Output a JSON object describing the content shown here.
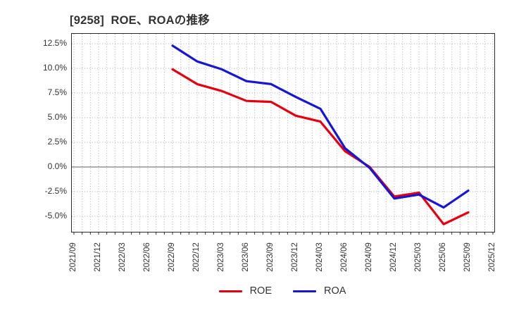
{
  "title": "[9258]  ROE、ROAの推移",
  "chart_data": {
    "type": "line",
    "title": "[9258]  ROE、ROAの推移",
    "x_categories": [
      "2021/09",
      "2021/12",
      "2022/03",
      "2022/06",
      "2022/09",
      "2022/12",
      "2023/03",
      "2023/06",
      "2023/09",
      "2023/12",
      "2024/03",
      "2024/06",
      "2024/09",
      "2024/12",
      "2025/03",
      "2025/06",
      "2025/09",
      "2025/12"
    ],
    "series": [
      {
        "name": "ROE",
        "color": "#e8000d",
        "start_index": 4,
        "values": [
          9.9,
          8.4,
          7.7,
          6.7,
          6.6,
          5.2,
          4.6,
          1.6,
          0.0,
          -3.0,
          -2.6,
          -5.8,
          -4.6
        ]
      },
      {
        "name": "ROA",
        "color": "#1616d9",
        "start_index": 4,
        "values": [
          12.3,
          10.7,
          9.9,
          8.7,
          8.4,
          7.1,
          5.9,
          1.9,
          -0.1,
          -3.2,
          -2.8,
          -4.1,
          -2.4
        ]
      }
    ],
    "y_ticks": [
      12.5,
      10.0,
      7.5,
      5.0,
      2.5,
      0.0,
      -2.5,
      -5.0
    ],
    "y_tick_labels": [
      "12.5%",
      "10.0%",
      "7.5%",
      "5.0%",
      "2.5%",
      "0.0%",
      "-2.5%",
      "-5.0%"
    ],
    "ylim": [
      -6.6,
      13.5
    ],
    "xlabel": "",
    "ylabel": "",
    "grid": true,
    "minor_x_grid": "monthly",
    "legend_position": "bottom"
  },
  "legend": {
    "items": [
      {
        "label": "ROE",
        "color": "#e8000d"
      },
      {
        "label": "ROA",
        "color": "#1616d9"
      }
    ]
  },
  "colors": {
    "grid": "#aaaaaa",
    "zero_line": "#7f7f7f",
    "frame": "#2b2b2b",
    "text": "#333333",
    "background": "#ffffff"
  }
}
